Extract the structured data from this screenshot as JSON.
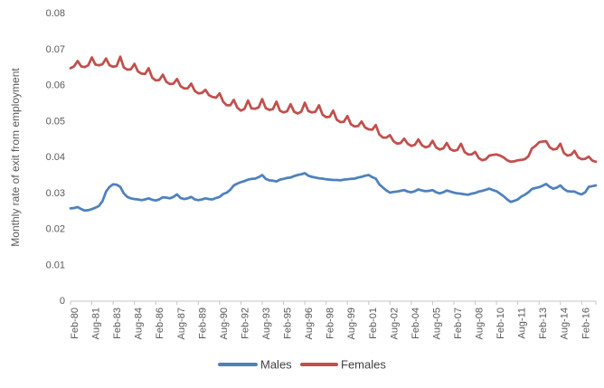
{
  "chart_data": {
    "type": "line",
    "title": "",
    "xlabel": "",
    "ylabel": "Monthly rate of exit from employment",
    "ylim": [
      0,
      0.08
    ],
    "y_ticks": [
      0,
      0.01,
      0.02,
      0.03,
      0.04,
      0.05,
      0.06,
      0.07,
      0.08
    ],
    "x_tick_labels": [
      "Feb-80",
      "Aug-81",
      "Feb-83",
      "Aug-84",
      "Feb-86",
      "Aug-87",
      "Feb-89",
      "Aug-90",
      "Feb-92",
      "Aug-93",
      "Feb-95",
      "Aug-96",
      "Feb-98",
      "Aug-99",
      "Feb-01",
      "Aug-02",
      "Feb-04",
      "Aug-05",
      "Feb-07",
      "Aug-08",
      "Feb-10",
      "Aug-11",
      "Feb-13",
      "Aug-14",
      "Feb-16"
    ],
    "x_tick_interval_months": 18,
    "x_start": "Feb-1980",
    "x_end": "Feb-2017",
    "x_total_months": 444,
    "sampling_note": "values estimated from graph at quarterly resolution (Feb, May, Aug, Nov of each year 1980-2016, plus Feb-2017)",
    "points_interval_months": 3,
    "grid": "off",
    "legend": {
      "position": "bottom-center",
      "items": [
        "Males",
        "Females"
      ]
    },
    "series": [
      {
        "name": "Males",
        "color": "#4F81BD",
        "values": [
          0.0258,
          0.0259,
          0.0262,
          0.0256,
          0.0252,
          0.0253,
          0.0256,
          0.026,
          0.0265,
          0.0278,
          0.0305,
          0.0318,
          0.0325,
          0.0324,
          0.0318,
          0.03,
          0.029,
          0.0286,
          0.0284,
          0.0283,
          0.0281,
          0.0283,
          0.0286,
          0.0282,
          0.028,
          0.0283,
          0.0289,
          0.0288,
          0.0286,
          0.029,
          0.0297,
          0.0287,
          0.0284,
          0.0286,
          0.029,
          0.0283,
          0.0281,
          0.0283,
          0.0286,
          0.0284,
          0.0283,
          0.0287,
          0.029,
          0.0298,
          0.0302,
          0.031,
          0.0322,
          0.0327,
          0.0331,
          0.0334,
          0.0338,
          0.034,
          0.0341,
          0.0345,
          0.0351,
          0.034,
          0.0336,
          0.0335,
          0.0333,
          0.0338,
          0.034,
          0.0343,
          0.0344,
          0.0348,
          0.0351,
          0.0353,
          0.0356,
          0.0349,
          0.0346,
          0.0344,
          0.0342,
          0.0341,
          0.0339,
          0.0338,
          0.0337,
          0.0337,
          0.0336,
          0.0338,
          0.0339,
          0.034,
          0.0341,
          0.0344,
          0.0346,
          0.0349,
          0.0351,
          0.0345,
          0.0341,
          0.0325,
          0.0316,
          0.0308,
          0.0302,
          0.0304,
          0.0305,
          0.0307,
          0.0309,
          0.0305,
          0.0303,
          0.0306,
          0.0311,
          0.0308,
          0.0306,
          0.0307,
          0.0309,
          0.0303,
          0.03,
          0.0303,
          0.0308,
          0.0305,
          0.0302,
          0.03,
          0.0299,
          0.0297,
          0.0296,
          0.0299,
          0.0301,
          0.0305,
          0.0307,
          0.031,
          0.0313,
          0.0309,
          0.0306,
          0.0299,
          0.0292,
          0.0283,
          0.0276,
          0.0279,
          0.0283,
          0.0291,
          0.0296,
          0.0303,
          0.0312,
          0.0315,
          0.0317,
          0.0321,
          0.0326,
          0.0318,
          0.0313,
          0.0316,
          0.0322,
          0.0312,
          0.0306,
          0.0305,
          0.0305,
          0.03,
          0.0297,
          0.0303,
          0.0318,
          0.032,
          0.0322
        ]
      },
      {
        "name": "Females",
        "color": "#C0504D",
        "values": [
          0.0648,
          0.0653,
          0.0668,
          0.0653,
          0.0651,
          0.0656,
          0.0678,
          0.0658,
          0.0656,
          0.0659,
          0.0675,
          0.0656,
          0.0652,
          0.0654,
          0.068,
          0.065,
          0.0644,
          0.0645,
          0.066,
          0.0639,
          0.0633,
          0.0632,
          0.0648,
          0.0622,
          0.0614,
          0.0615,
          0.063,
          0.061,
          0.0604,
          0.0605,
          0.0618,
          0.0598,
          0.0592,
          0.0592,
          0.0605,
          0.0585,
          0.0578,
          0.0579,
          0.0588,
          0.0573,
          0.0568,
          0.0566,
          0.0578,
          0.0555,
          0.0545,
          0.0545,
          0.056,
          0.0538,
          0.053,
          0.0535,
          0.0558,
          0.0536,
          0.0535,
          0.0539,
          0.0562,
          0.0537,
          0.0532,
          0.0534,
          0.0555,
          0.053,
          0.0525,
          0.0528,
          0.0548,
          0.0527,
          0.0522,
          0.0527,
          0.0552,
          0.0529,
          0.0525,
          0.0527,
          0.0545,
          0.0519,
          0.0512,
          0.0513,
          0.053,
          0.0505,
          0.0498,
          0.0499,
          0.0515,
          0.0492,
          0.0486,
          0.0487,
          0.05,
          0.0483,
          0.0478,
          0.0477,
          0.049,
          0.0464,
          0.0455,
          0.0455,
          0.0462,
          0.0445,
          0.0438,
          0.044,
          0.0452,
          0.0438,
          0.0432,
          0.0435,
          0.045,
          0.0434,
          0.0428,
          0.0431,
          0.0446,
          0.0428,
          0.0422,
          0.0425,
          0.044,
          0.0423,
          0.0418,
          0.0421,
          0.0438,
          0.0415,
          0.0408,
          0.0408,
          0.0415,
          0.0398,
          0.0392,
          0.0395,
          0.0405,
          0.0407,
          0.0408,
          0.0405,
          0.04,
          0.0392,
          0.0388,
          0.0389,
          0.0392,
          0.0393,
          0.0395,
          0.0403,
          0.0425,
          0.0432,
          0.0442,
          0.0444,
          0.0445,
          0.0428,
          0.0422,
          0.0424,
          0.0438,
          0.0412,
          0.0405,
          0.0407,
          0.0418,
          0.04,
          0.0395,
          0.0396,
          0.0402,
          0.0391,
          0.0388
        ]
      }
    ],
    "colors": {
      "axis_line": "#C6C6C6",
      "tick_text": "#595959",
      "legend_text": "#404040",
      "background": "#FFFFFF"
    }
  }
}
